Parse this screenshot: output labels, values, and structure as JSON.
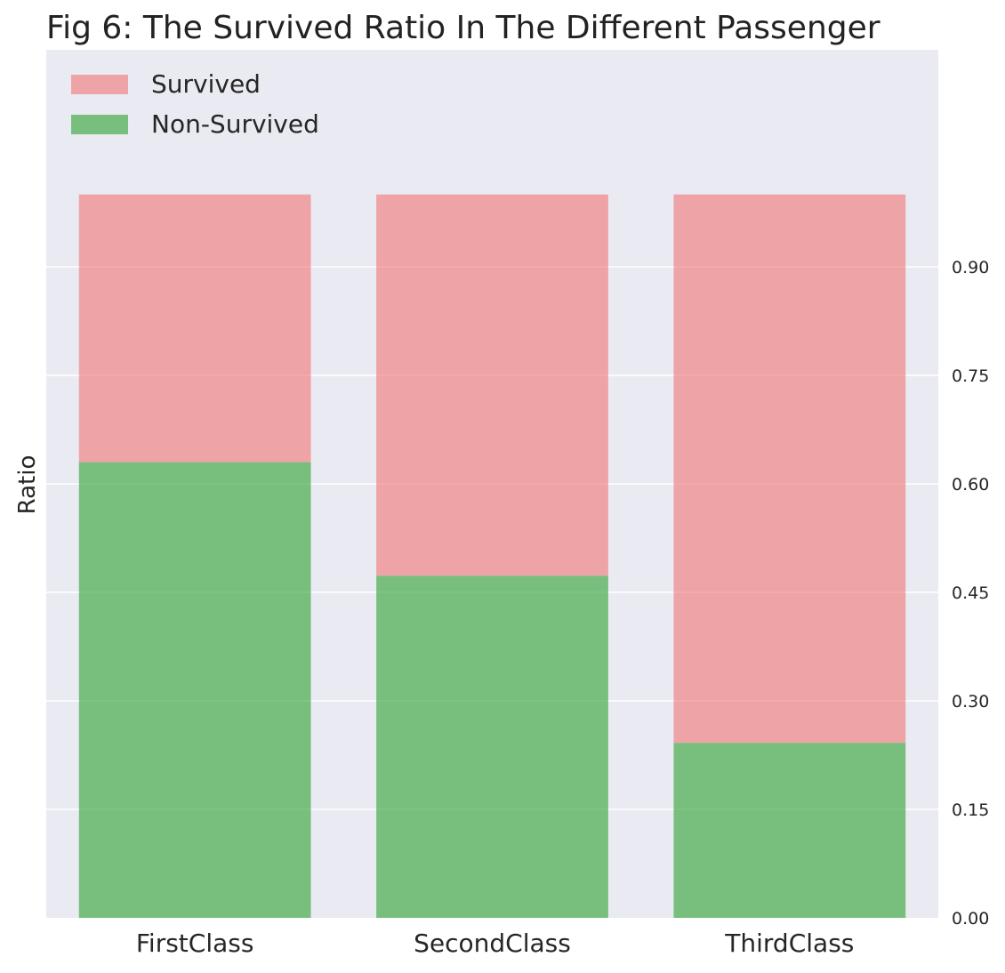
{
  "chart_data": {
    "type": "bar",
    "stacked": true,
    "title": "Fig 6: The Survived Ratio In The Different Passenger",
    "xlabel": "",
    "ylabel": "Ratio",
    "y_axis_position": "right",
    "categories": [
      "FirstClass",
      "SecondClass",
      "ThirdClass"
    ],
    "series": [
      {
        "name": "Non-Survived",
        "color": "#4caf50",
        "values": [
          0.63,
          0.473,
          0.242
        ]
      },
      {
        "name": "Survived",
        "color": "#f08080",
        "values": [
          0.37,
          0.527,
          0.758
        ]
      }
    ],
    "legend_order": [
      "Survived",
      "Non-Survived"
    ],
    "legend_placement": "top-left",
    "ylim": [
      0,
      1.2
    ],
    "yticks": [
      0,
      0.15,
      0.3,
      0.45,
      0.6,
      0.75,
      0.9
    ],
    "ytick_labels": [
      "0.00",
      "0.15",
      "0.30",
      "0.45",
      "0.60",
      "0.75",
      "0.90"
    ],
    "grid": true
  }
}
